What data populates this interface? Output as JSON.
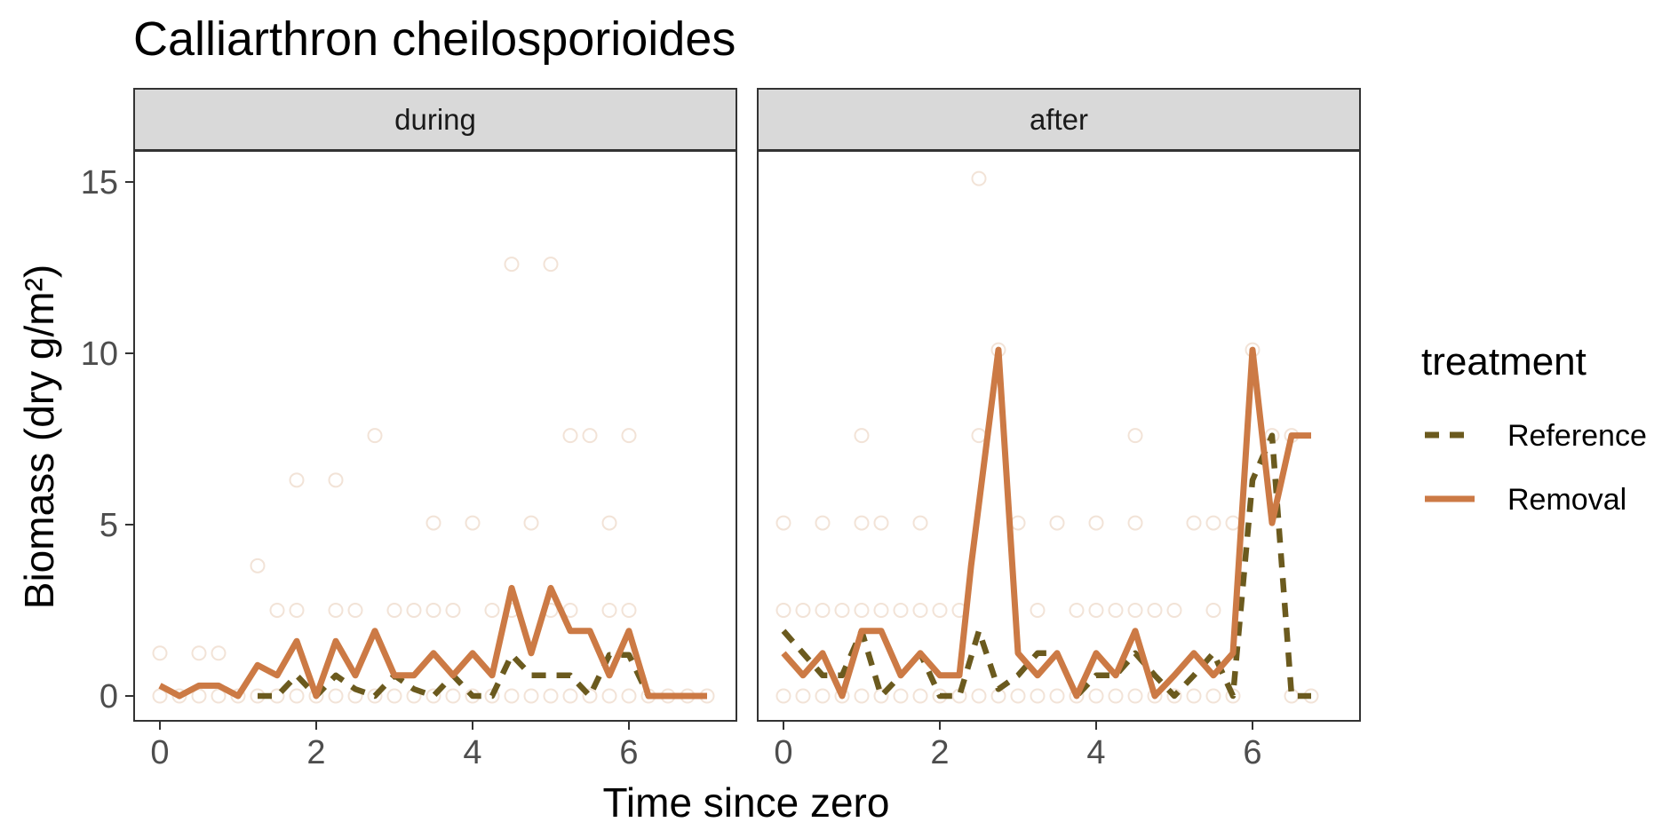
{
  "chart_data": {
    "type": "line",
    "title": "Calliarthron cheilosporioides",
    "xlabel": "Time since zero",
    "ylabel": "Biomass (dry g/m²)",
    "ylim": [
      -0.7,
      16
    ],
    "xlim": [
      -0.35,
      7.3
    ],
    "x_ticks": [
      0,
      2,
      4,
      6
    ],
    "y_ticks": [
      0,
      5,
      10,
      15
    ],
    "grid": false,
    "legend": {
      "title": "treatment",
      "position": "right",
      "entries": [
        {
          "label": "Reference",
          "color": "#6b5a1e",
          "linetype": "dashed"
        },
        {
          "label": "Removal",
          "color": "#cc7a45",
          "linetype": "solid"
        }
      ]
    },
    "panels": [
      {
        "label": "during",
        "series": [
          {
            "name": "Reference",
            "color": "#6b5a1e",
            "linetype": "dashed",
            "x": [
              1.25,
              1.5,
              1.75,
              2,
              2.25,
              2.5,
              2.75,
              3,
              3.25,
              3.5,
              3.75,
              4,
              4.25,
              4.5,
              4.75,
              5,
              5.25,
              5.5,
              5.75,
              6,
              6.25,
              6.5,
              6.75,
              7
            ],
            "y": [
              0,
              0,
              0.6,
              0,
              0.6,
              0.2,
              0,
              0.6,
              0.2,
              0,
              0.6,
              0,
              0,
              1.2,
              0.6,
              0.6,
              0.6,
              0,
              1.2,
              1.2,
              0,
              0,
              0,
              0
            ]
          },
          {
            "name": "Removal",
            "color": "#cc7a45",
            "linetype": "solid",
            "x": [
              0,
              0.25,
              0.5,
              0.75,
              1,
              1.25,
              1.5,
              1.75,
              2,
              2.25,
              2.5,
              2.75,
              3,
              3.25,
              3.5,
              3.75,
              4,
              4.25,
              4.5,
              4.75,
              5,
              5.25,
              5.5,
              5.75,
              6,
              6.25,
              6.5,
              6.75,
              7
            ],
            "y": [
              0.3,
              0,
              0.3,
              0.3,
              0,
              0.9,
              0.6,
              1.6,
              0,
              1.6,
              0.6,
              1.9,
              0.6,
              0.6,
              1.25,
              0.6,
              1.25,
              0.6,
              3.15,
              1.25,
              3.15,
              1.9,
              1.9,
              0.6,
              1.9,
              0,
              0,
              0,
              0
            ]
          }
        ],
        "points": [
          {
            "x": 0,
            "y": 1.25
          },
          {
            "x": 0.5,
            "y": 1.25
          },
          {
            "x": 0.75,
            "y": 1.25
          },
          {
            "x": 1.25,
            "y": 3.8
          },
          {
            "x": 1.5,
            "y": 2.5
          },
          {
            "x": 1.75,
            "y": 6.3
          },
          {
            "x": 1.75,
            "y": 2.5
          },
          {
            "x": 2.25,
            "y": 6.3
          },
          {
            "x": 2.25,
            "y": 2.5
          },
          {
            "x": 2.5,
            "y": 2.5
          },
          {
            "x": 2.75,
            "y": 7.6
          },
          {
            "x": 3,
            "y": 2.5
          },
          {
            "x": 3.25,
            "y": 2.5
          },
          {
            "x": 3.5,
            "y": 5.05
          },
          {
            "x": 3.5,
            "y": 2.5
          },
          {
            "x": 3.75,
            "y": 2.5
          },
          {
            "x": 4,
            "y": 5.05
          },
          {
            "x": 4.25,
            "y": 2.5
          },
          {
            "x": 4.5,
            "y": 12.6
          },
          {
            "x": 4.5,
            "y": 2.5
          },
          {
            "x": 4.75,
            "y": 5.05
          },
          {
            "x": 5,
            "y": 12.6
          },
          {
            "x": 5,
            "y": 2.5
          },
          {
            "x": 5.25,
            "y": 7.6
          },
          {
            "x": 5.25,
            "y": 2.5
          },
          {
            "x": 5.5,
            "y": 7.6
          },
          {
            "x": 5.75,
            "y": 5.05
          },
          {
            "x": 5.75,
            "y": 2.5
          },
          {
            "x": 6,
            "y": 7.6
          },
          {
            "x": 6,
            "y": 2.5
          },
          {
            "x": 0,
            "y": 0
          },
          {
            "x": 0.25,
            "y": 0
          },
          {
            "x": 0.5,
            "y": 0
          },
          {
            "x": 0.75,
            "y": 0
          },
          {
            "x": 1,
            "y": 0
          },
          {
            "x": 1.25,
            "y": 0
          },
          {
            "x": 1.5,
            "y": 0
          },
          {
            "x": 1.75,
            "y": 0
          },
          {
            "x": 2,
            "y": 0
          },
          {
            "x": 2.25,
            "y": 0
          },
          {
            "x": 2.5,
            "y": 0
          },
          {
            "x": 2.75,
            "y": 0
          },
          {
            "x": 3,
            "y": 0
          },
          {
            "x": 3.25,
            "y": 0
          },
          {
            "x": 3.5,
            "y": 0
          },
          {
            "x": 3.75,
            "y": 0
          },
          {
            "x": 4,
            "y": 0
          },
          {
            "x": 4.25,
            "y": 0
          },
          {
            "x": 4.5,
            "y": 0
          },
          {
            "x": 4.75,
            "y": 0
          },
          {
            "x": 5,
            "y": 0
          },
          {
            "x": 5.25,
            "y": 0
          },
          {
            "x": 5.5,
            "y": 0
          },
          {
            "x": 5.75,
            "y": 0
          },
          {
            "x": 6,
            "y": 0
          },
          {
            "x": 6.25,
            "y": 0
          },
          {
            "x": 6.5,
            "y": 0
          },
          {
            "x": 6.75,
            "y": 0
          },
          {
            "x": 7,
            "y": 0
          }
        ]
      },
      {
        "label": "after",
        "series": [
          {
            "name": "Reference",
            "color": "#6b5a1e",
            "linetype": "dashed",
            "x": [
              0,
              0.25,
              0.5,
              0.75,
              1,
              1.25,
              1.5,
              1.75,
              2,
              2.25,
              2.5,
              2.75,
              3,
              3.25,
              3.5,
              3.75,
              4,
              4.25,
              4.5,
              4.75,
              5,
              5.25,
              5.5,
              5.75,
              6,
              6.25,
              6.5,
              6.75
            ],
            "y": [
              1.9,
              1.25,
              0.6,
              0.6,
              1.9,
              0,
              0.6,
              1.25,
              0,
              0,
              1.9,
              0.2,
              0.6,
              1.25,
              1.25,
              0,
              0.6,
              0.6,
              1.25,
              0.6,
              0,
              0.6,
              1.25,
              0,
              6.3,
              7.6,
              0,
              0
            ]
          },
          {
            "name": "Removal",
            "color": "#cc7a45",
            "linetype": "solid",
            "x": [
              0,
              0.25,
              0.5,
              0.75,
              1,
              1.25,
              1.5,
              1.75,
              2,
              2.25,
              2.4,
              2.75,
              3,
              3.25,
              3.5,
              3.75,
              4,
              4.25,
              4.5,
              4.75,
              5,
              5.25,
              5.5,
              5.75,
              6,
              6.25,
              6.5,
              6.75
            ],
            "y": [
              1.25,
              0.6,
              1.25,
              0,
              1.9,
              1.9,
              0.6,
              1.25,
              0.6,
              0.6,
              3.8,
              10.1,
              1.25,
              0.6,
              1.25,
              0,
              1.25,
              0.6,
              1.9,
              0,
              0.6,
              1.25,
              0.6,
              1.25,
              10.1,
              5.05,
              7.6,
              7.6
            ]
          }
        ],
        "points": [
          {
            "x": 0,
            "y": 5.05
          },
          {
            "x": 0,
            "y": 2.5
          },
          {
            "x": 0.25,
            "y": 2.5
          },
          {
            "x": 0.5,
            "y": 5.05
          },
          {
            "x": 0.5,
            "y": 2.5
          },
          {
            "x": 0.75,
            "y": 2.5
          },
          {
            "x": 1,
            "y": 7.6
          },
          {
            "x": 1,
            "y": 5.05
          },
          {
            "x": 1,
            "y": 2.5
          },
          {
            "x": 1.25,
            "y": 5.05
          },
          {
            "x": 1.25,
            "y": 2.5
          },
          {
            "x": 1.5,
            "y": 2.5
          },
          {
            "x": 1.75,
            "y": 5.05
          },
          {
            "x": 1.75,
            "y": 2.5
          },
          {
            "x": 2,
            "y": 2.5
          },
          {
            "x": 2.25,
            "y": 2.5
          },
          {
            "x": 2.5,
            "y": 15.1
          },
          {
            "x": 2.5,
            "y": 7.6
          },
          {
            "x": 2.75,
            "y": 10.1
          },
          {
            "x": 3,
            "y": 5.05
          },
          {
            "x": 3.25,
            "y": 2.5
          },
          {
            "x": 3.5,
            "y": 5.05
          },
          {
            "x": 3.75,
            "y": 2.5
          },
          {
            "x": 4,
            "y": 5.05
          },
          {
            "x": 4,
            "y": 2.5
          },
          {
            "x": 4.25,
            "y": 2.5
          },
          {
            "x": 4.5,
            "y": 7.6
          },
          {
            "x": 4.5,
            "y": 5.05
          },
          {
            "x": 4.5,
            "y": 2.5
          },
          {
            "x": 4.75,
            "y": 2.5
          },
          {
            "x": 5,
            "y": 2.5
          },
          {
            "x": 5.25,
            "y": 5.05
          },
          {
            "x": 5.5,
            "y": 5.05
          },
          {
            "x": 5.5,
            "y": 2.5
          },
          {
            "x": 5.75,
            "y": 5.05
          },
          {
            "x": 6,
            "y": 10.1
          },
          {
            "x": 6.25,
            "y": 7.6
          },
          {
            "x": 6.5,
            "y": 7.6
          },
          {
            "x": 0,
            "y": 0
          },
          {
            "x": 0.25,
            "y": 0
          },
          {
            "x": 0.5,
            "y": 0
          },
          {
            "x": 0.75,
            "y": 0
          },
          {
            "x": 1,
            "y": 0
          },
          {
            "x": 1.25,
            "y": 0
          },
          {
            "x": 1.5,
            "y": 0
          },
          {
            "x": 1.75,
            "y": 0
          },
          {
            "x": 2,
            "y": 0
          },
          {
            "x": 2.25,
            "y": 0
          },
          {
            "x": 2.5,
            "y": 0
          },
          {
            "x": 2.75,
            "y": 0
          },
          {
            "x": 3,
            "y": 0
          },
          {
            "x": 3.25,
            "y": 0
          },
          {
            "x": 3.5,
            "y": 0
          },
          {
            "x": 3.75,
            "y": 0
          },
          {
            "x": 4,
            "y": 0
          },
          {
            "x": 4.25,
            "y": 0
          },
          {
            "x": 4.5,
            "y": 0
          },
          {
            "x": 4.75,
            "y": 0
          },
          {
            "x": 5,
            "y": 0
          },
          {
            "x": 5.25,
            "y": 0
          },
          {
            "x": 5.5,
            "y": 0
          },
          {
            "x": 5.75,
            "y": 0
          },
          {
            "x": 6.5,
            "y": 0
          },
          {
            "x": 6.75,
            "y": 0
          }
        ]
      }
    ],
    "point_color": "#d9b08c"
  }
}
